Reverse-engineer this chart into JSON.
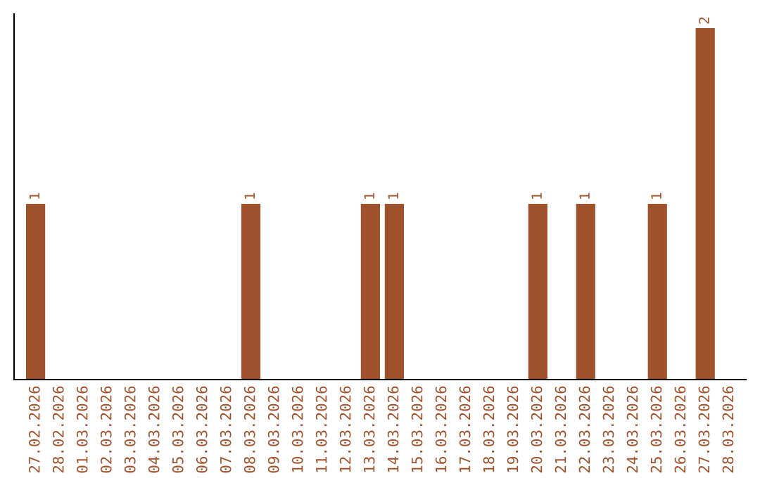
{
  "chart_data": {
    "type": "bar",
    "categories": [
      "27.02.2026",
      "28.02.2026",
      "01.03.2026",
      "02.03.2026",
      "03.03.2026",
      "04.03.2026",
      "05.03.2026",
      "06.03.2026",
      "07.03.2026",
      "08.03.2026",
      "09.03.2026",
      "10.03.2026",
      "11.03.2026",
      "12.03.2026",
      "13.03.2026",
      "14.03.2026",
      "15.03.2026",
      "16.03.2026",
      "17.03.2026",
      "18.03.2026",
      "19.03.2026",
      "20.03.2026",
      "21.03.2026",
      "22.03.2026",
      "23.03.2026",
      "24.03.2026",
      "25.03.2026",
      "26.03.2026",
      "27.03.2026",
      "28.03.2026"
    ],
    "values": [
      1,
      0,
      0,
      0,
      0,
      0,
      0,
      0,
      0,
      1,
      0,
      0,
      0,
      0,
      1,
      1,
      0,
      0,
      0,
      0,
      0,
      1,
      0,
      1,
      0,
      0,
      1,
      0,
      2,
      0
    ],
    "value_labels": [
      "1",
      null,
      null,
      null,
      null,
      null,
      null,
      null,
      null,
      "1",
      null,
      null,
      null,
      null,
      "1",
      "1",
      null,
      null,
      null,
      null,
      null,
      "1",
      null,
      "1",
      null,
      null,
      "1",
      null,
      "2",
      null
    ],
    "color": "#a0522d",
    "tick_labels": "x",
    "grid": false,
    "legend": false
  }
}
